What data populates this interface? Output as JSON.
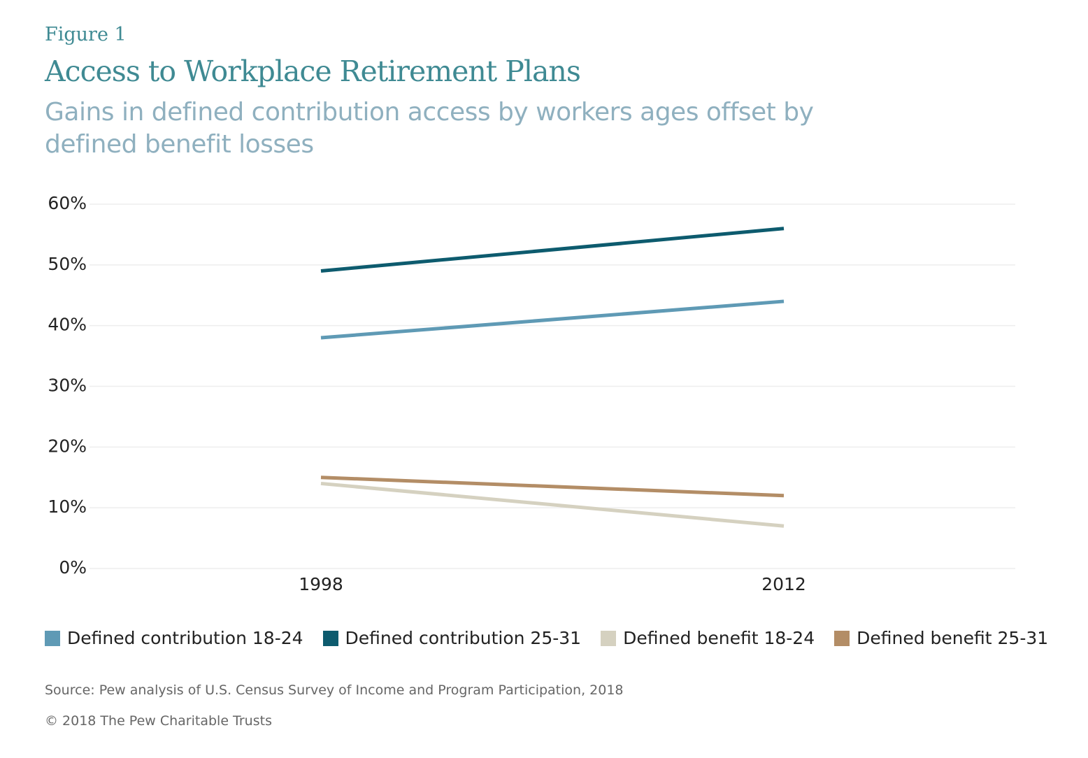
{
  "chart_data": {
    "type": "line",
    "figure_label": "Figure 1",
    "title": "Access to Workplace Retirement Plans",
    "subtitle": "Gains in defined contribution access by workers ages offset by defined benefit losses",
    "categories": [
      "1998",
      "2012"
    ],
    "series": [
      {
        "name": "Defined contribution 18-24",
        "color": "#5f9ab5",
        "values": [
          38,
          44
        ]
      },
      {
        "name": "Defined contribution 25-31",
        "color": "#0d5b6e",
        "values": [
          49,
          56
        ]
      },
      {
        "name": "Defined benefit 18-24",
        "color": "#d5d1c0",
        "values": [
          14,
          7
        ]
      },
      {
        "name": "Defined benefit 25-31",
        "color": "#b38d66",
        "values": [
          15,
          12
        ]
      }
    ],
    "ylim": [
      0,
      60
    ],
    "yticks": [
      {
        "value": 0,
        "label": "0%"
      },
      {
        "value": 10,
        "label": "10%"
      },
      {
        "value": 20,
        "label": "20%"
      },
      {
        "value": 30,
        "label": "30%"
      },
      {
        "value": 40,
        "label": "40%"
      },
      {
        "value": 50,
        "label": "50%"
      },
      {
        "value": 60,
        "label": "60%"
      }
    ],
    "grid": true,
    "source": "Source: Pew analysis of U.S. Census Survey of Income and Program Participation, 2018",
    "copyright": "© 2018 The Pew Charitable Trusts"
  }
}
